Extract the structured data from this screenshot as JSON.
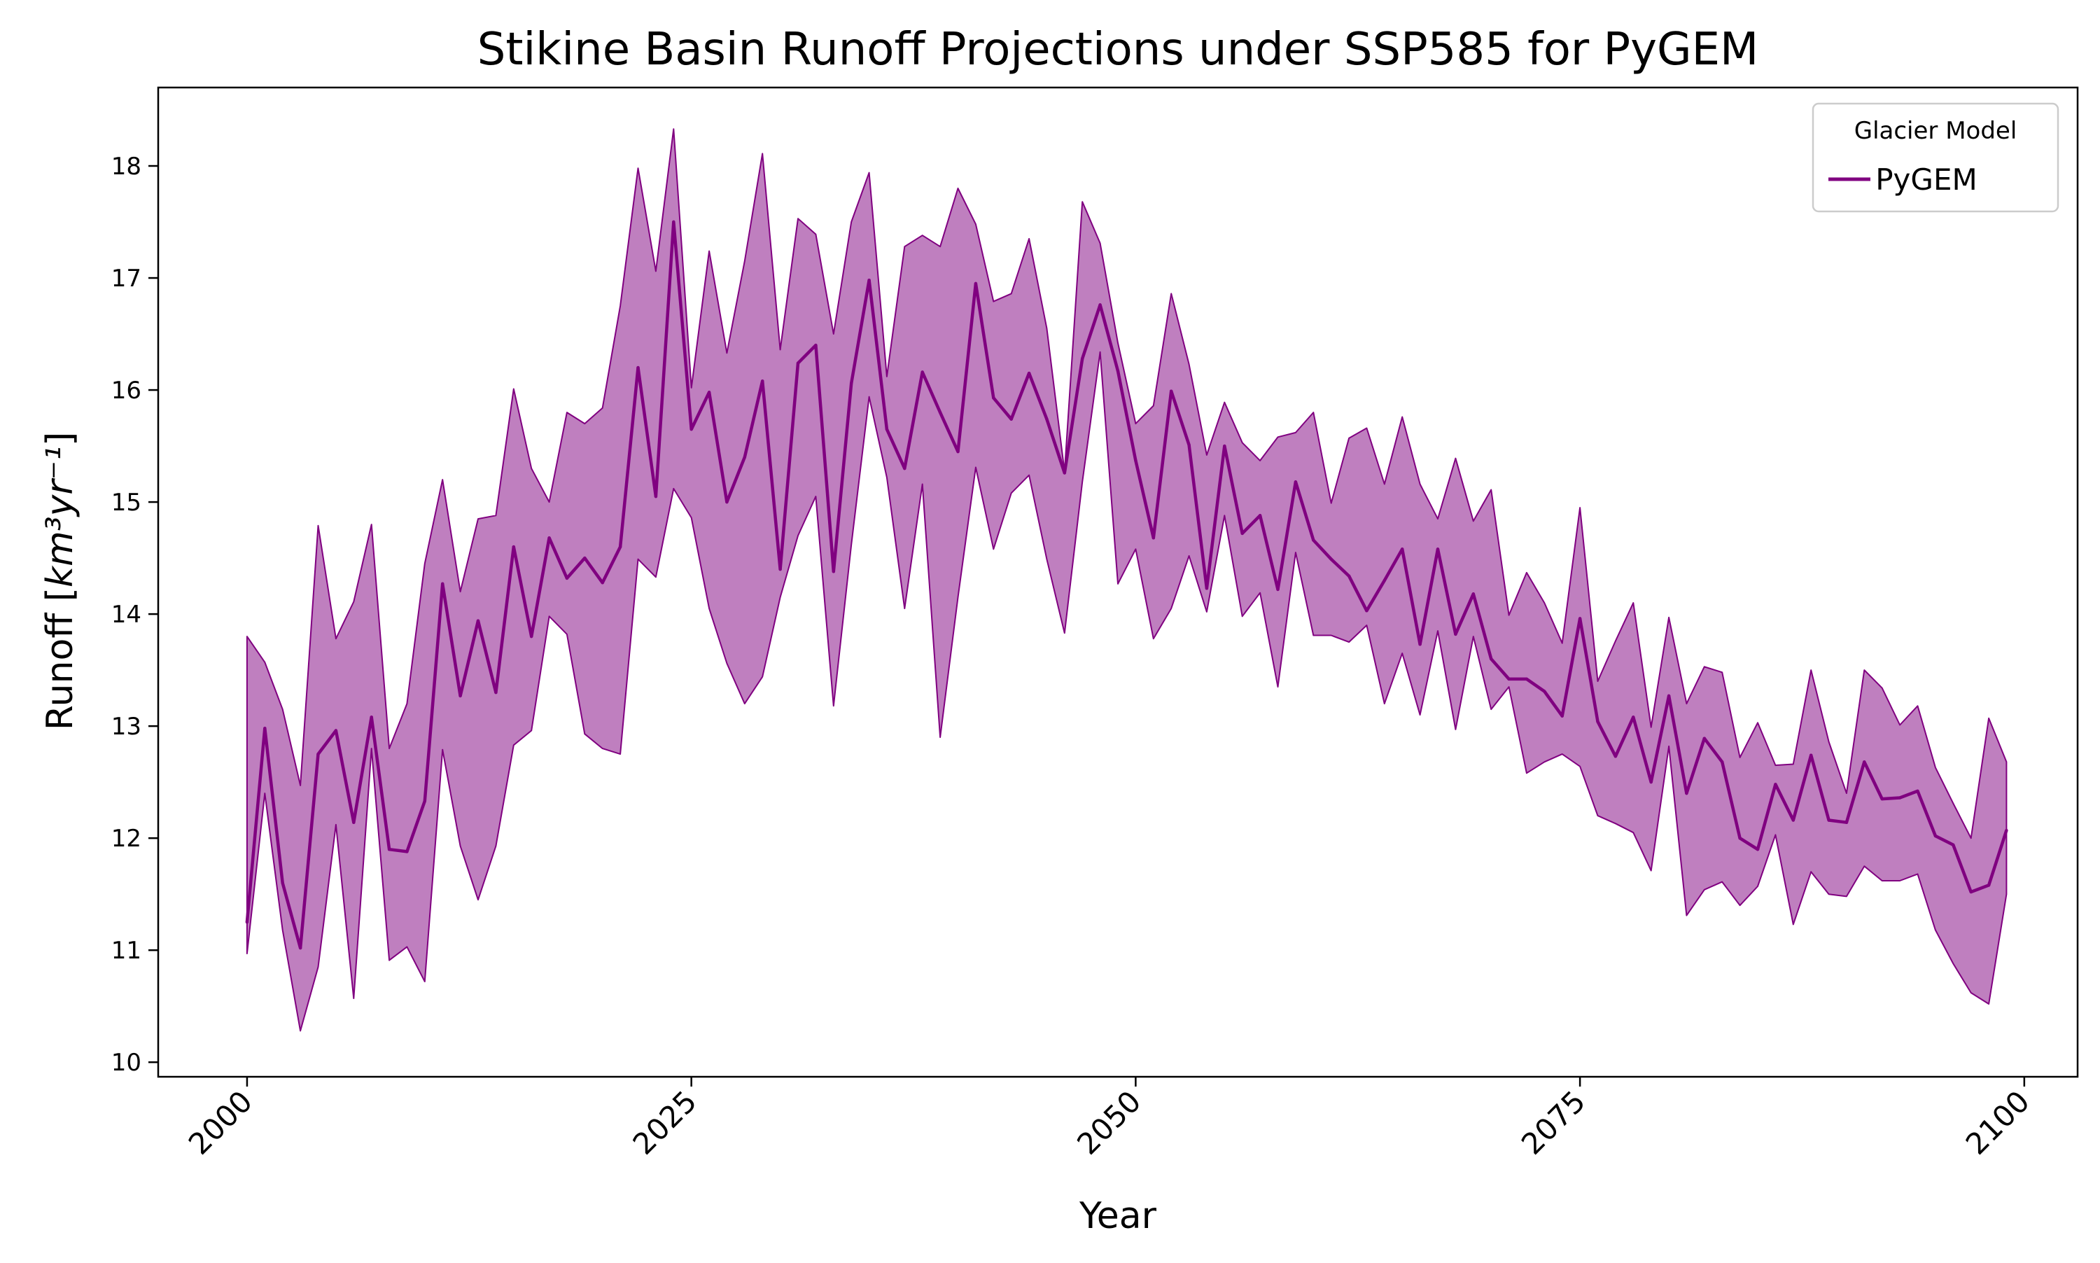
{
  "chart_data": {
    "type": "area",
    "title": "Stikine Basin Runoff Projections under SSP585 for PyGEM",
    "xlabel": "Year",
    "ylabel_main": "Runoff [",
    "ylabel_unit": "km³yr⁻¹",
    "ylabel_close": "]",
    "xlim": [
      1995,
      2103
    ],
    "ylim": [
      9.87,
      18.7
    ],
    "xticks": [
      2000,
      2025,
      2050,
      2075,
      2100
    ],
    "yticks": [
      10,
      11,
      12,
      13,
      14,
      15,
      16,
      17,
      18
    ],
    "xtick_rotation": 45,
    "legend": {
      "title": "Glacier Model",
      "location": "top-right"
    },
    "series": [
      {
        "name": "PyGEM",
        "color": "#800080",
        "fill_color": "#800080",
        "fill_opacity": 0.5,
        "x": [
          2000,
          2001,
          2002,
          2003,
          2004,
          2005,
          2006,
          2007,
          2008,
          2009,
          2010,
          2011,
          2012,
          2013,
          2014,
          2015,
          2016,
          2017,
          2018,
          2019,
          2020,
          2021,
          2022,
          2023,
          2024,
          2025,
          2026,
          2027,
          2028,
          2029,
          2030,
          2031,
          2032,
          2033,
          2034,
          2035,
          2036,
          2037,
          2038,
          2039,
          2040,
          2041,
          2042,
          2043,
          2044,
          2045,
          2046,
          2047,
          2048,
          2049,
          2050,
          2051,
          2052,
          2053,
          2054,
          2055,
          2056,
          2057,
          2058,
          2059,
          2060,
          2061,
          2062,
          2063,
          2064,
          2065,
          2066,
          2067,
          2068,
          2069,
          2070,
          2071,
          2072,
          2073,
          2074,
          2075,
          2076,
          2077,
          2078,
          2079,
          2080,
          2081,
          2082,
          2083,
          2084,
          2085,
          2086,
          2087,
          2088,
          2089,
          2090,
          2091,
          2092,
          2093,
          2094,
          2095,
          2096,
          2097,
          2098,
          2099
        ],
        "mean": [
          11.25,
          12.98,
          11.6,
          11.02,
          12.75,
          12.96,
          12.14,
          13.08,
          11.9,
          11.88,
          12.33,
          14.27,
          13.27,
          13.94,
          13.3,
          14.6,
          13.8,
          14.68,
          14.32,
          14.5,
          14.28,
          14.6,
          16.2,
          15.05,
          17.5,
          15.65,
          15.98,
          15.0,
          15.4,
          16.08,
          14.4,
          16.24,
          16.4,
          14.38,
          16.06,
          16.98,
          15.65,
          15.3,
          16.16,
          15.8,
          15.45,
          16.95,
          15.93,
          15.74,
          16.15,
          15.74,
          15.26,
          16.28,
          16.76,
          16.17,
          15.37,
          14.68,
          15.99,
          15.51,
          14.23,
          15.5,
          14.72,
          14.88,
          14.22,
          15.18,
          14.66,
          14.49,
          14.34,
          14.03,
          14.3,
          14.58,
          13.73,
          14.58,
          13.82,
          14.18,
          13.6,
          13.42,
          13.42,
          13.31,
          13.09,
          13.96,
          13.04,
          12.73,
          13.08,
          12.5,
          13.27,
          12.4,
          12.89,
          12.68,
          12.0,
          11.9,
          12.48,
          12.16,
          12.74,
          12.16,
          12.14,
          12.68,
          12.35,
          12.36,
          12.42,
          12.02,
          11.94,
          11.52,
          11.58,
          12.07
        ],
        "upper": [
          13.8,
          13.57,
          13.15,
          12.47,
          14.79,
          13.78,
          14.11,
          14.8,
          12.8,
          13.2,
          14.45,
          15.2,
          14.2,
          14.85,
          14.88,
          16.01,
          15.3,
          15.0,
          15.8,
          15.7,
          15.84,
          16.75,
          17.98,
          17.06,
          18.33,
          16.02,
          17.24,
          16.33,
          17.15,
          18.11,
          16.36,
          17.53,
          17.39,
          16.5,
          17.5,
          17.94,
          16.12,
          17.28,
          17.38,
          17.28,
          17.8,
          17.48,
          16.79,
          16.86,
          17.35,
          16.55,
          15.27,
          17.68,
          17.31,
          16.42,
          15.7,
          15.86,
          16.86,
          16.23,
          15.42,
          15.89,
          15.53,
          15.37,
          15.58,
          15.62,
          15.8,
          14.99,
          15.57,
          15.66,
          15.16,
          15.76,
          15.16,
          14.85,
          15.39,
          14.83,
          15.11,
          13.99,
          14.37,
          14.1,
          13.74,
          14.95,
          13.4,
          13.76,
          14.1,
          12.99,
          13.97,
          13.2,
          13.53,
          13.48,
          12.72,
          13.03,
          12.65,
          12.66,
          13.5,
          12.86,
          12.4,
          13.5,
          13.34,
          13.01,
          13.18,
          12.63,
          12.31,
          12.0,
          13.07,
          12.68
        ],
        "lower": [
          10.97,
          12.4,
          11.18,
          10.28,
          10.85,
          12.12,
          10.57,
          12.8,
          10.91,
          11.03,
          10.72,
          12.79,
          11.93,
          11.45,
          11.93,
          12.83,
          12.96,
          13.98,
          13.82,
          12.93,
          12.8,
          12.75,
          14.49,
          14.33,
          15.12,
          14.86,
          14.05,
          13.56,
          13.2,
          13.44,
          14.15,
          14.7,
          15.05,
          13.18,
          14.62,
          15.94,
          15.22,
          14.05,
          15.16,
          12.9,
          14.15,
          15.31,
          14.58,
          15.08,
          15.24,
          14.49,
          13.83,
          15.18,
          16.34,
          14.27,
          14.58,
          13.78,
          14.05,
          14.52,
          14.02,
          14.88,
          13.98,
          14.19,
          13.35,
          14.55,
          13.81,
          13.81,
          13.75,
          13.9,
          13.2,
          13.65,
          13.1,
          13.85,
          12.97,
          13.8,
          13.15,
          13.35,
          12.58,
          12.68,
          12.75,
          12.64,
          12.2,
          12.13,
          12.05,
          11.71,
          12.82,
          11.31,
          11.54,
          11.61,
          11.4,
          11.57,
          12.03,
          11.23,
          11.7,
          11.5,
          11.48,
          11.75,
          11.62,
          11.62,
          11.68,
          11.18,
          10.88,
          10.62,
          10.52,
          11.5
        ]
      }
    ]
  }
}
